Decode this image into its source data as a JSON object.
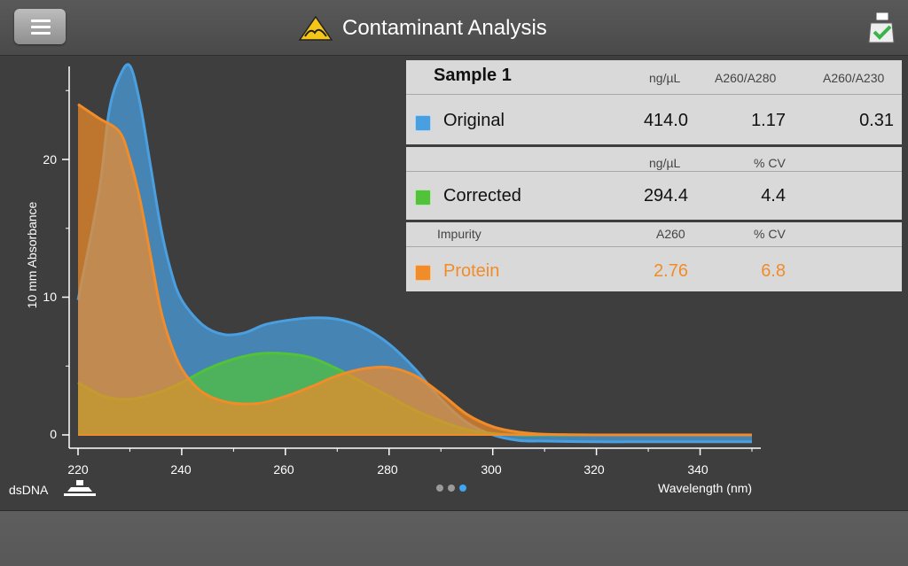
{
  "header": {
    "title": "Contaminant Analysis",
    "menu_icon": "hamburger-menu-icon",
    "title_icon": "warning-triangle-icon",
    "app_icon": "sample-check-icon"
  },
  "table": {
    "sample_name": "Sample 1",
    "top_headers": [
      "ng/µL",
      "A260/A280",
      "A260/A230"
    ],
    "original": {
      "label": "Original",
      "color": "#4a9fe0",
      "values": [
        "414.0",
        "1.17",
        "0.31"
      ]
    },
    "corrected_headers": [
      "ng/µL",
      "% CV"
    ],
    "corrected": {
      "label": "Corrected",
      "color": "#52c23a",
      "values": [
        "294.4",
        "4.4"
      ]
    },
    "impurity_headers": [
      "Impurity",
      "A260",
      "% CV"
    ],
    "protein": {
      "label": "Protein",
      "color": "#f08c2a",
      "values": [
        "2.76",
        "6.8"
      ]
    }
  },
  "footer_info": {
    "mode": "dsDNA",
    "mode_icon": "pedestal-icon",
    "page_dots": 3,
    "active_page": 3
  },
  "chart_data": {
    "type": "area",
    "xlabel": "Wavelength (nm)",
    "ylabel": "10 mm Absorbance",
    "xlim": [
      220,
      350
    ],
    "ylim": [
      -1,
      27
    ],
    "xticks": [
      "220",
      "240",
      "260",
      "280",
      "300",
      "320",
      "340"
    ],
    "yticks": [
      "0",
      "10",
      "20"
    ],
    "grid": false,
    "series": [
      {
        "name": "Original",
        "color": "#4a9fe0",
        "x": [
          220,
          224,
          226,
          228,
          230,
          232,
          234,
          236,
          238,
          240,
          244,
          248,
          252,
          256,
          260,
          265,
          270,
          275,
          280,
          285,
          290,
          295,
          300,
          305,
          310,
          320,
          330,
          340,
          350
        ],
        "y": [
          9.8,
          17.5,
          23.5,
          26.0,
          26.8,
          24.0,
          19.5,
          15.0,
          11.8,
          9.8,
          8.0,
          7.3,
          7.4,
          8.0,
          8.3,
          8.5,
          8.4,
          7.8,
          6.6,
          4.8,
          2.6,
          0.9,
          0.0,
          -0.4,
          -0.45,
          -0.5,
          -0.5,
          -0.5,
          -0.5
        ]
      },
      {
        "name": "Corrected",
        "color": "#52c23a",
        "x": [
          220,
          225,
          230,
          235,
          240,
          245,
          250,
          255,
          260,
          265,
          270,
          275,
          280,
          285,
          290,
          295,
          300,
          305,
          310,
          320,
          330,
          340,
          350
        ],
        "y": [
          3.8,
          2.8,
          2.6,
          3.0,
          3.8,
          4.8,
          5.5,
          5.9,
          5.9,
          5.6,
          4.8,
          3.8,
          2.8,
          1.8,
          1.0,
          0.4,
          0.1,
          0.0,
          0.0,
          0.0,
          0.0,
          0.0,
          0.0
        ]
      },
      {
        "name": "Protein",
        "color": "#f08c2a",
        "x": [
          220,
          224,
          228,
          230,
          232,
          234,
          236,
          238,
          240,
          243,
          246,
          250,
          255,
          260,
          265,
          270,
          275,
          280,
          285,
          290,
          295,
          300,
          305,
          310,
          320,
          330,
          340,
          350
        ],
        "y": [
          24.0,
          23.0,
          22.0,
          20.0,
          17.0,
          13.0,
          9.0,
          6.5,
          4.8,
          3.4,
          2.7,
          2.3,
          2.3,
          2.8,
          3.5,
          4.3,
          4.8,
          4.9,
          4.3,
          3.0,
          1.5,
          0.6,
          0.2,
          0.05,
          0.0,
          0.0,
          0.0,
          0.0
        ]
      }
    ]
  }
}
